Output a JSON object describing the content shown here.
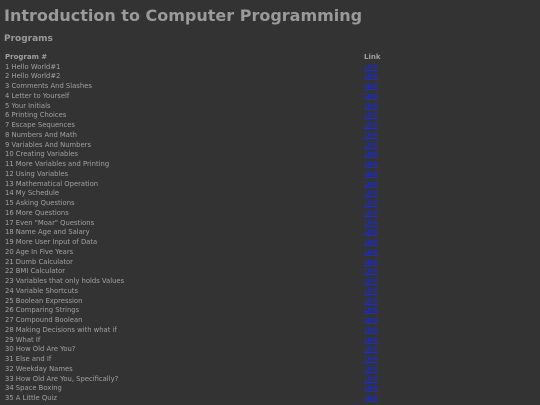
{
  "page": {
    "title": "Introduction to Computer Programming"
  },
  "section": {
    "title": "Programs"
  },
  "table": {
    "headers": [
      "Program #",
      "Link"
    ],
    "link_label": "Link",
    "rows": [
      "1 Hello World#1",
      "2 Hello World#2",
      "3 Comments And Slashes",
      "4 Letter to Yourself",
      "5 Your Initials",
      "6 Printing Choices",
      "7 Escape Sequences",
      "8 Numbers And Math",
      "9 Variables And Numbers",
      "10 Creating Variables",
      "11 More Variables and Printing",
      "12 Using Variables",
      "13 Mathematical Operation",
      "14 My Schedule",
      "15 Asking Questions",
      "16 More Questions",
      "17 Even \"Moar\" Questions",
      "18 Name Age and Salary",
      "19 More User Input of Data",
      "20 Age In Five Years",
      "21 Dumb Calculator",
      "22 BMI Calculator",
      "23 Variables that only holds Values",
      "24 Variable Shortcuts",
      "25 Boolean Expression",
      "26 Comparing Strings",
      "27 Compound Boolean",
      "28 Making Decisions with what if",
      "29 What If",
      "30 How Old Are You?",
      "31 Else and If",
      "32 Weekday Names",
      "33 How Old Are You, Specifically?",
      "34 Space Boxing",
      "35 A Little Quiz"
    ]
  },
  "colors": {
    "background": "#333333",
    "link": "#1a2bd6",
    "text": "#a2a2a2"
  }
}
